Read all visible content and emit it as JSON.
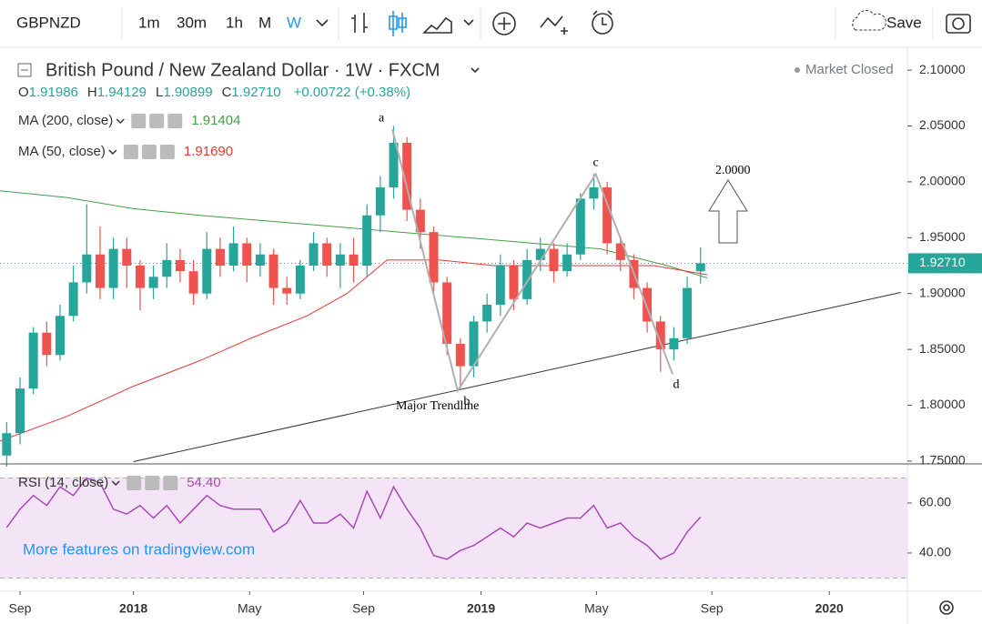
{
  "toolbar": {
    "symbol": "GBPNZD",
    "intervals": [
      "1m",
      "30m",
      "1h",
      "M",
      "W"
    ],
    "save": "Save"
  },
  "header": {
    "title": "British Pound / New Zealand Dollar · 1W · FXCM",
    "status": "Market Closed",
    "ohlc": [
      "O",
      "1.91986",
      "H",
      "1.94129",
      "L",
      "1.90899",
      "C",
      "1.92710"
    ],
    "change": "+0.00722 (+0.38%)"
  },
  "watermark": "More features on tradingview.com",
  "chart_data": {
    "type": "candlestick",
    "x": [
      -19,
      -17,
      -15,
      -13,
      -11,
      -9,
      -7,
      -5,
      -3,
      -1,
      1,
      3,
      5,
      7,
      9,
      11,
      13,
      15,
      17,
      19,
      21,
      23,
      25,
      27,
      29,
      31,
      33,
      35,
      37,
      39,
      41,
      43,
      45,
      47,
      49,
      51,
      53,
      55,
      57,
      59,
      61,
      63,
      65,
      67,
      69,
      71,
      73,
      75,
      77,
      79,
      81,
      83,
      85
    ],
    "open": [
      1.755,
      1.775,
      1.815,
      1.865,
      1.845,
      1.88,
      1.91,
      1.935,
      1.905,
      1.94,
      1.925,
      1.905,
      1.915,
      1.93,
      1.92,
      1.9,
      1.94,
      1.925,
      1.945,
      1.925,
      1.935,
      1.905,
      1.9,
      1.925,
      1.945,
      1.925,
      1.935,
      1.925,
      1.97,
      1.995,
      2.035,
      1.975,
      1.955,
      1.91,
      1.855,
      1.835,
      1.875,
      1.89,
      1.925,
      1.895,
      1.93,
      1.94,
      1.92,
      1.935,
      1.985,
      1.995,
      1.945,
      1.93,
      1.905,
      1.875,
      1.85,
      1.86,
      1.91986
    ],
    "high": [
      1.785,
      1.825,
      1.87,
      1.875,
      1.89,
      1.925,
      1.98,
      1.96,
      1.95,
      1.95,
      1.93,
      1.925,
      1.945,
      1.94,
      1.93,
      1.955,
      1.95,
      1.96,
      1.95,
      1.945,
      1.94,
      1.915,
      1.93,
      1.955,
      1.95,
      1.945,
      1.95,
      1.98,
      2.005,
      2.05,
      2.04,
      1.985,
      1.96,
      1.915,
      1.86,
      1.88,
      1.9,
      1.935,
      1.93,
      1.94,
      1.95,
      1.945,
      1.945,
      1.99,
      2.007,
      2.0,
      1.95,
      1.935,
      1.91,
      1.88,
      1.87,
      1.915,
      1.94129
    ],
    "low": [
      1.745,
      1.765,
      1.81,
      1.835,
      1.84,
      1.875,
      1.9,
      1.895,
      1.895,
      1.905,
      1.885,
      1.895,
      1.905,
      1.91,
      1.89,
      1.895,
      1.915,
      1.92,
      1.91,
      1.915,
      1.89,
      1.89,
      1.895,
      1.92,
      1.915,
      1.905,
      1.91,
      1.915,
      1.955,
      1.985,
      1.965,
      1.94,
      1.9,
      1.845,
      1.815,
      1.825,
      1.865,
      1.88,
      1.885,
      1.89,
      1.92,
      1.91,
      1.915,
      1.93,
      1.975,
      1.935,
      1.92,
      1.895,
      1.865,
      1.83,
      1.84,
      1.855,
      1.90899
    ],
    "close": [
      1.775,
      1.815,
      1.865,
      1.845,
      1.88,
      1.91,
      1.935,
      1.905,
      1.94,
      1.925,
      1.905,
      1.915,
      1.93,
      1.92,
      1.9,
      1.94,
      1.925,
      1.945,
      1.925,
      1.935,
      1.905,
      1.9,
      1.925,
      1.945,
      1.925,
      1.935,
      1.925,
      1.97,
      1.995,
      2.035,
      1.975,
      1.955,
      1.91,
      1.855,
      1.835,
      1.875,
      1.89,
      1.925,
      1.895,
      1.93,
      1.94,
      1.92,
      1.935,
      1.985,
      1.995,
      1.945,
      1.93,
      1.905,
      1.875,
      1.85,
      1.86,
      1.905,
      1.9271
    ],
    "up_color": "#26a69a",
    "down_color": "#ef5350",
    "xlim": [
      -20,
      116
    ],
    "xticks": [
      {
        "value": -17,
        "label": "Sep"
      },
      {
        "value": 0,
        "label": "2018"
      },
      {
        "value": 17.4,
        "label": "May"
      },
      {
        "value": 34.5,
        "label": "Sep"
      },
      {
        "value": 52.1,
        "label": "2019"
      },
      {
        "value": 69.4,
        "label": "May"
      },
      {
        "value": 86.7,
        "label": "Sep"
      },
      {
        "value": 104.3,
        "label": "2020"
      }
    ],
    "ylim": [
      1.7475,
      2.118
    ],
    "yticks": [
      {
        "value": 1.75,
        "label": "1.75000"
      },
      {
        "value": 1.8,
        "label": "1.80000"
      },
      {
        "value": 1.85,
        "label": "1.85000"
      },
      {
        "value": 1.9,
        "label": "1.90000"
      },
      {
        "value": 1.95,
        "label": "1.95000"
      },
      {
        "value": 2.0,
        "label": "2.00000"
      },
      {
        "value": 2.05,
        "label": "2.05000"
      },
      {
        "value": 2.1,
        "label": "2.10000"
      }
    ],
    "grid": false,
    "series": [
      {
        "name": "MA (200, close)",
        "color": "#43a047",
        "x": [
          -20,
          -10,
          0,
          10,
          20,
          30,
          40,
          50,
          60,
          70,
          80,
          86
        ],
        "values": [
          1.992,
          1.986,
          1.976,
          1.97,
          1.965,
          1.96,
          1.955,
          1.95,
          1.945,
          1.94,
          1.925,
          1.91404
        ],
        "last_value": 1.91404
      },
      {
        "name": "MA (50, close)",
        "color": "#e53935",
        "x": [
          -20,
          -10,
          0,
          10,
          18,
          26,
          32,
          38,
          46,
          54,
          62,
          70,
          78,
          86
        ],
        "values": [
          1.768,
          1.79,
          1.817,
          1.84,
          1.861,
          1.88,
          1.9,
          1.93,
          1.93,
          1.925,
          1.925,
          1.925,
          1.925,
          1.9169
        ],
        "last_value": {
          "value": 1.9169,
          "label": "1.91690"
        }
      }
    ],
    "last_price": {
      "value": 1.9271,
      "label": "1.92710"
    },
    "trendline": {
      "name": "Major Trendline",
      "x": [
        0,
        115
      ],
      "values": [
        1.7495,
        1.901
      ]
    },
    "pattern": {
      "labels": [
        "a",
        "b",
        "c",
        "d"
      ],
      "x": [
        38.8,
        48.6,
        69.3,
        80.8
      ],
      "values": [
        2.047,
        1.813,
        2.007,
        1.828
      ]
    },
    "target": "2.0000",
    "rsi": {
      "name": "RSI (14, close)",
      "color": "#ab47bc",
      "values": [
        50.2,
        57.5,
        63,
        59,
        66.5,
        63,
        70,
        68,
        57.5,
        55.6,
        59,
        54,
        59,
        52,
        57.5,
        63,
        59,
        57.5,
        57.5,
        57.5,
        48.4,
        52,
        61,
        52,
        52,
        55.6,
        50,
        64.7,
        54,
        66.5,
        57.5,
        50,
        39,
        37.5,
        41,
        43,
        46.5,
        50,
        46.5,
        52,
        50,
        52,
        54,
        54,
        59,
        50,
        52,
        46.5,
        43,
        37.5,
        40,
        48.4,
        54.4
      ],
      "last_value": {
        "value": 54.4,
        "label": "54.40"
      },
      "ylim": [
        24.7,
        74.9
      ],
      "yticks": [
        {
          "value": 60,
          "label": "60.00"
        },
        {
          "value": 40,
          "label": "40.00"
        }
      ],
      "bands": [
        30,
        70
      ]
    }
  }
}
